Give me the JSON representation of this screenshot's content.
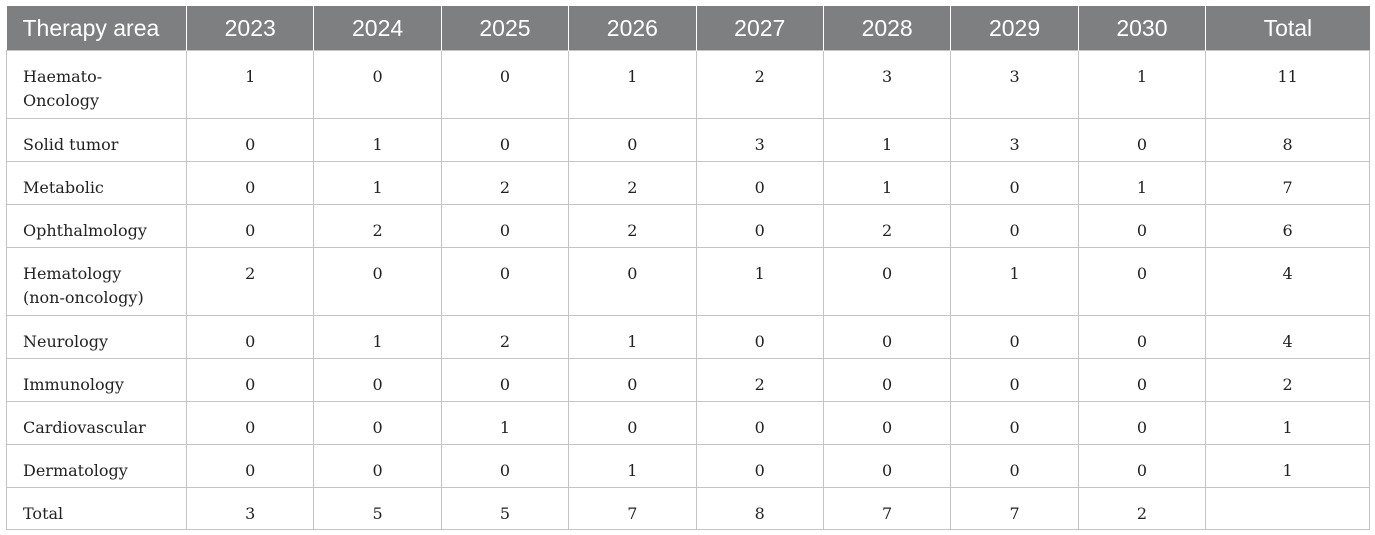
{
  "table": {
    "headers": [
      "Therapy area",
      "2023",
      "2024",
      "2025",
      "2026",
      "2027",
      "2028",
      "2029",
      "2030",
      "Total"
    ],
    "rows": [
      {
        "area": "Haemato-\nOncology",
        "values": [
          "1",
          "0",
          "0",
          "1",
          "2",
          "3",
          "3",
          "1",
          "11"
        ]
      },
      {
        "area": "Solid tumor",
        "values": [
          "0",
          "1",
          "0",
          "0",
          "3",
          "1",
          "3",
          "0",
          "8"
        ]
      },
      {
        "area": "Metabolic",
        "values": [
          "0",
          "1",
          "2",
          "2",
          "0",
          "1",
          "0",
          "1",
          "7"
        ]
      },
      {
        "area": "Ophthalmology",
        "values": [
          "0",
          "2",
          "0",
          "2",
          "0",
          "2",
          "0",
          "0",
          "6"
        ]
      },
      {
        "area": "Hematology\n(non-oncology)",
        "values": [
          "2",
          "0",
          "0",
          "0",
          "1",
          "0",
          "1",
          "0",
          "4"
        ]
      },
      {
        "area": "Neurology",
        "values": [
          "0",
          "1",
          "2",
          "1",
          "0",
          "0",
          "0",
          "0",
          "4"
        ]
      },
      {
        "area": "Immunology",
        "values": [
          "0",
          "0",
          "0",
          "0",
          "2",
          "0",
          "0",
          "0",
          "2"
        ]
      },
      {
        "area": "Cardiovascular",
        "values": [
          "0",
          "0",
          "1",
          "0",
          "0",
          "0",
          "0",
          "0",
          "1"
        ]
      },
      {
        "area": "Dermatology",
        "values": [
          "0",
          "0",
          "0",
          "1",
          "0",
          "0",
          "0",
          "0",
          "1"
        ]
      },
      {
        "area": "Total",
        "values": [
          "3",
          "5",
          "5",
          "7",
          "8",
          "7",
          "7",
          "2",
          ""
        ]
      }
    ]
  },
  "colors": {
    "header_bg": "#7d7f80",
    "header_text": "#ffffff",
    "grid": "#c4c4c4"
  }
}
